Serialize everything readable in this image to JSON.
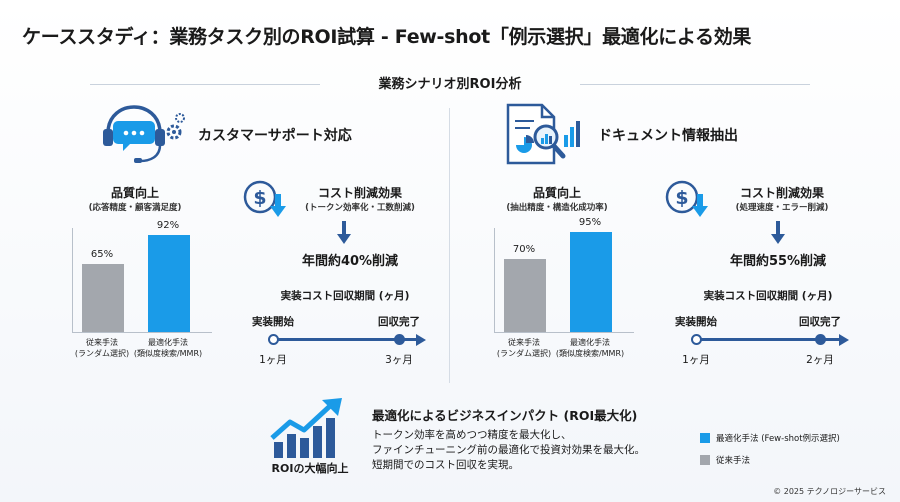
{
  "title": "ケーススタディ：業務タスク別のROI試算 - Few-shot「例示選択」最適化による効果",
  "subtitle": "業務シナリオ別ROI分析",
  "colors": {
    "optimized": "#1a9be8",
    "traditional": "#a3a7ad",
    "navy": "#2d5a9a"
  },
  "left": {
    "section_title": "カスタマーサポート対応",
    "quality_title": "品質向上",
    "quality_sub": "(応答精度・顧客満足度)",
    "bars": [
      {
        "label_line1": "従来手法",
        "label_line2": "(ランダム選択)",
        "value": 65,
        "value_label": "65%"
      },
      {
        "label_line1": "最適化手法",
        "label_line2": "(類似度検索/MMR)",
        "value": 92,
        "value_label": "92%"
      }
    ],
    "cost_title": "コスト削減効果",
    "cost_sub": "(トークン効率化・工数削減)",
    "cost_result": "年間約40%削減",
    "payback_title": "実装コスト回収期間 (ヶ月)",
    "timeline_start_label": "実装開始",
    "timeline_end_label": "回収完了",
    "timeline_start_value": "1ヶ月",
    "timeline_end_value": "3ヶ月",
    "icon": "headset-chat-gear-icon"
  },
  "right": {
    "section_title": "ドキュメント情報抽出",
    "quality_title": "品質向上",
    "quality_sub": "(抽出精度・構造化成功率)",
    "bars": [
      {
        "label_line1": "従来手法",
        "label_line2": "(ランダム選択)",
        "value": 70,
        "value_label": "70%"
      },
      {
        "label_line1": "最適化手法",
        "label_line2": "(類似度検索/MMR)",
        "value": 95,
        "value_label": "95%"
      }
    ],
    "cost_title": "コスト削減効果",
    "cost_sub": "(処理速度・エラー削減)",
    "cost_result": "年間約55%削減",
    "payback_title": "実装コスト回収期間 (ヶ月)",
    "timeline_start_label": "実装開始",
    "timeline_end_label": "回収完了",
    "timeline_start_value": "1ヶ月",
    "timeline_end_value": "2ヶ月",
    "icon": "document-magnifier-chart-icon"
  },
  "impact": {
    "badge_label": "ROIの大幅向上",
    "title": "最適化によるビジネスインパクト (ROI最大化)",
    "body_line1": "トークン効率を高めつつ精度を最大化し、",
    "body_line2": "ファインチューニング前の最適化で投資対効果を最大化。",
    "body_line3": "短期間でのコスト回収を実現。"
  },
  "legend": {
    "optimized_label": "最適化手法 (Few-shot例示選択)",
    "traditional_label": "従来手法"
  },
  "footer": "© 2025 テクノロジーサービス"
}
